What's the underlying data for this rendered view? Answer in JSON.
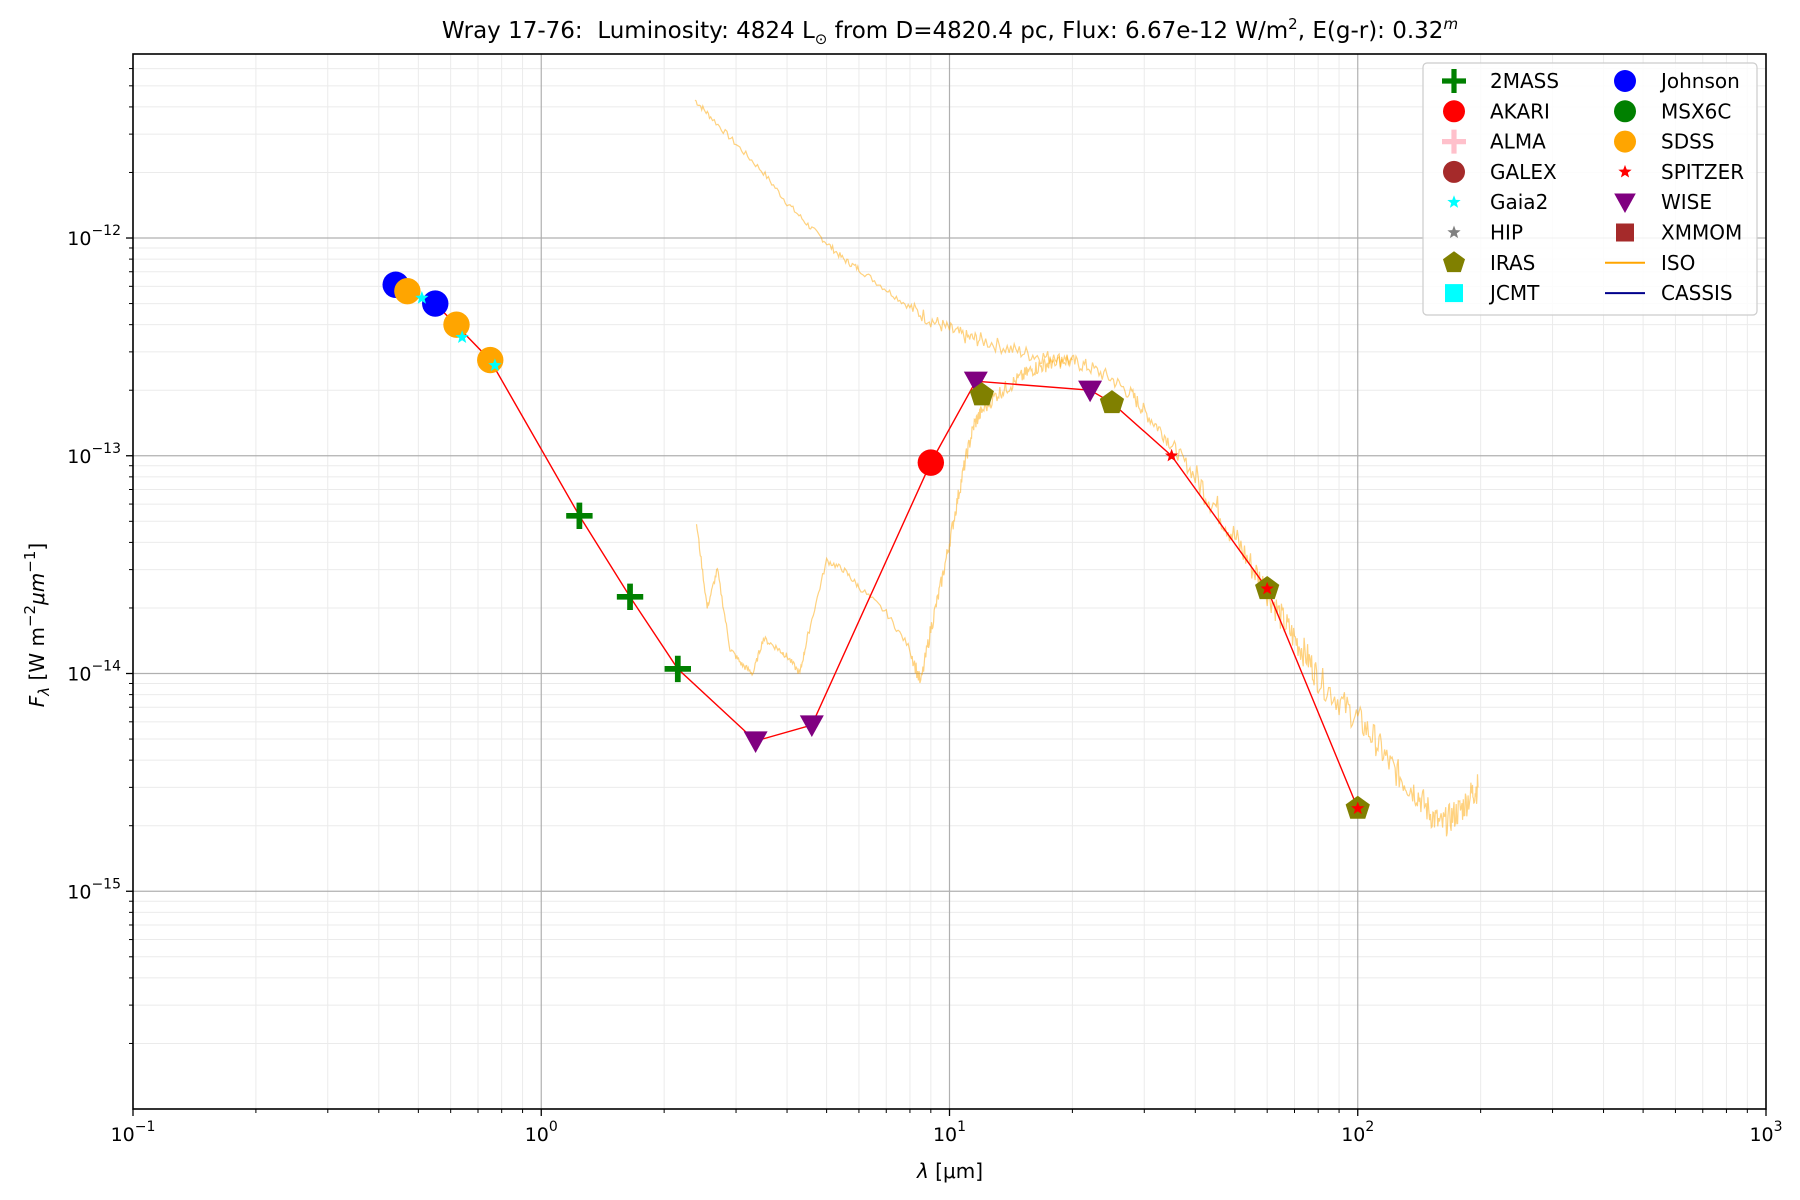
{
  "chart_data": {
    "type": "scatter",
    "title": {
      "object": "Wray 17-76:",
      "lum_prefix": "Luminosity: 4824 L",
      "sun_symbol": "⊙",
      "from_text": " from D=4820.4 pc, Flux: 6.67e-12 W/m",
      "flux_sup": "2",
      "ext_text": ", E(g-r): 0.32",
      "ext_sup": "m"
    },
    "xlabel": "λ [μm]",
    "ylabel": "F_λ [W m^-2 μm^-1]",
    "xlabel_parts": {
      "lambda": "λ",
      "unit": " [μm]"
    },
    "ylabel_parts": {
      "f": "F",
      "sub": "λ",
      "unit_a": " [W m",
      "sup_a": "−2",
      "unit_b": "μm",
      "sup_b": "−1",
      "unit_c": "]"
    },
    "xscale": "log",
    "yscale": "log",
    "xlim": [
      0.1,
      1000
    ],
    "ylim": [
      1e-16,
      7e-12
    ],
    "grid": true,
    "legend_position": "top-right",
    "x_ticks": [
      {
        "value": 0.1,
        "base": "10",
        "exp": "−1"
      },
      {
        "value": 1,
        "base": "10",
        "exp": "0"
      },
      {
        "value": 10,
        "base": "10",
        "exp": "1"
      },
      {
        "value": 100,
        "base": "10",
        "exp": "2"
      },
      {
        "value": 1000,
        "base": "10",
        "exp": "3"
      }
    ],
    "y_ticks": [
      {
        "value": 1e-12,
        "base": "10",
        "exp": "−12"
      },
      {
        "value": 1e-13,
        "base": "10",
        "exp": "−13"
      },
      {
        "value": 1e-14,
        "base": "10",
        "exp": "−14"
      },
      {
        "value": 1e-15,
        "base": "10",
        "exp": "−15"
      }
    ],
    "legend": [
      {
        "label": "2MASS",
        "marker": "plus",
        "color": "#008000",
        "col": 0
      },
      {
        "label": "AKARI",
        "marker": "circle",
        "color": "#ff0000",
        "col": 0
      },
      {
        "label": "ALMA",
        "marker": "plus",
        "color": "#ffc0cb",
        "col": 0
      },
      {
        "label": "GALEX",
        "marker": "circle",
        "color": "#a52a2a",
        "col": 0
      },
      {
        "label": "Gaia2",
        "marker": "star",
        "color": "#00ffff",
        "col": 0
      },
      {
        "label": "HIP",
        "marker": "star",
        "color": "#808080",
        "col": 0
      },
      {
        "label": "IRAS",
        "marker": "pentagon",
        "color": "#808000",
        "col": 0
      },
      {
        "label": "JCMT",
        "marker": "square",
        "color": "#00ffff",
        "col": 0
      },
      {
        "label": "Johnson",
        "marker": "circle",
        "color": "#0000ff",
        "col": 1
      },
      {
        "label": "MSX6C",
        "marker": "circle",
        "color": "#008000",
        "col": 1
      },
      {
        "label": "SDSS",
        "marker": "circle",
        "color": "#ffa500",
        "col": 1
      },
      {
        "label": "SPITZER",
        "marker": "star",
        "color": "#ff0000",
        "col": 1
      },
      {
        "label": "WISE",
        "marker": "triangle-down",
        "color": "#800080",
        "col": 1
      },
      {
        "label": "XMMOM",
        "marker": "square",
        "color": "#a52a2a",
        "col": 1
      },
      {
        "label": "ISO",
        "marker": "line",
        "color": "#ffa500",
        "col": 1
      },
      {
        "label": "CASSIS",
        "marker": "line",
        "color": "#00008b",
        "col": 1
      }
    ],
    "series": [
      {
        "name": "Johnson",
        "marker": "circle",
        "color": "#0000ff",
        "points": [
          [
            0.44,
            6.1e-13
          ],
          [
            0.55,
            5e-13
          ]
        ]
      },
      {
        "name": "SDSS",
        "marker": "circle",
        "color": "#ffa500",
        "points": [
          [
            0.47,
            5.7e-13
          ],
          [
            0.62,
            4e-13
          ],
          [
            0.75,
            2.75e-13
          ]
        ]
      },
      {
        "name": "Gaia2",
        "marker": "star",
        "color": "#00ffff",
        "points": [
          [
            0.51,
            5.3e-13
          ],
          [
            0.64,
            3.5e-13
          ],
          [
            0.77,
            2.6e-13
          ]
        ]
      },
      {
        "name": "2MASS",
        "marker": "plus",
        "color": "#008000",
        "points": [
          [
            1.24,
            5.3e-14
          ],
          [
            1.65,
            2.25e-14
          ],
          [
            2.16,
            1.05e-14
          ]
        ]
      },
      {
        "name": "WISE",
        "marker": "triangle-down",
        "color": "#800080",
        "points": [
          [
            3.35,
            4.9e-15
          ],
          [
            4.6,
            5.8e-15
          ],
          [
            11.6,
            2.2e-13
          ],
          [
            22.1,
            2e-13
          ]
        ]
      },
      {
        "name": "AKARI",
        "marker": "circle",
        "color": "#ff0000",
        "points": [
          [
            9.0,
            9.3e-14
          ]
        ]
      },
      {
        "name": "IRAS",
        "marker": "pentagon",
        "color": "#808000",
        "points": [
          [
            12.0,
            1.9e-13
          ],
          [
            25.0,
            1.75e-13
          ],
          [
            60.0,
            2.45e-14
          ],
          [
            100.0,
            2.4e-15
          ]
        ]
      },
      {
        "name": "SPITZER",
        "marker": "star",
        "color": "#ff0000",
        "points": [
          [
            35.0,
            1e-13
          ],
          [
            60.0,
            2.45e-14
          ],
          [
            100.0,
            2.4e-15
          ]
        ]
      }
    ],
    "sed_line": {
      "color": "#ff0000",
      "points": [
        [
          0.44,
          6.1e-13
        ],
        [
          0.47,
          5.7e-13
        ],
        [
          0.51,
          5.3e-13
        ],
        [
          0.55,
          5e-13
        ],
        [
          0.75,
          2.75e-13
        ],
        [
          1.24,
          5.3e-14
        ],
        [
          1.65,
          2.25e-14
        ],
        [
          2.16,
          1.05e-14
        ],
        [
          3.35,
          4.9e-15
        ],
        [
          4.6,
          5.8e-15
        ],
        [
          9.0,
          9.3e-14
        ],
        [
          11.6,
          2.2e-13
        ],
        [
          22.1,
          2e-13
        ],
        [
          25.0,
          1.75e-13
        ],
        [
          35.0,
          1e-13
        ],
        [
          60.0,
          2.45e-14
        ],
        [
          100.0,
          2.4e-15
        ]
      ]
    },
    "iso_spectrum": {
      "color": "#ffa500",
      "segments": [
        [
          [
            2.38,
            4.3e-12
          ],
          [
            2.6,
            3.6e-12
          ],
          [
            3.0,
            2.7e-12
          ],
          [
            3.5,
            2e-12
          ],
          [
            4.0,
            1.45e-12
          ],
          [
            4.5,
            1.15e-12
          ],
          [
            5.0,
            9.5e-13
          ],
          [
            5.5,
            8e-13
          ],
          [
            6.0,
            7.2e-13
          ],
          [
            7.0,
            5.8e-13
          ],
          [
            8.0,
            4.8e-13
          ],
          [
            9.0,
            4.2e-13
          ],
          [
            10.0,
            3.8e-13
          ],
          [
            11.0,
            3.5e-13
          ],
          [
            12.0,
            3.4e-13
          ],
          [
            14.0,
            3.1e-13
          ],
          [
            16.0,
            2.9e-13
          ],
          [
            18.0,
            2.8e-13
          ],
          [
            20.0,
            2.7e-13
          ],
          [
            22.0,
            2.55e-13
          ],
          [
            25.0,
            2.25e-13
          ],
          [
            28.0,
            1.9e-13
          ],
          [
            30.0,
            1.6e-13
          ],
          [
            33.0,
            1.3e-13
          ],
          [
            36.0,
            1.05e-13
          ],
          [
            40.0,
            8e-14
          ],
          [
            45.0,
            5.8e-14
          ],
          [
            50.0,
            4.2e-14
          ],
          [
            55.0,
            3.1e-14
          ],
          [
            60.0,
            2.4e-14
          ],
          [
            65.0,
            1.8e-14
          ],
          [
            70.0,
            1.45e-14
          ],
          [
            75.0,
            1.2e-14
          ],
          [
            80.0,
            9.5e-15
          ],
          [
            90.0,
            7.5e-15
          ],
          [
            100.0,
            6.2e-15
          ],
          [
            110.0,
            5e-15
          ],
          [
            120.0,
            3.8e-15
          ],
          [
            130.0,
            3.2e-15
          ],
          [
            140.0,
            2.8e-15
          ],
          [
            150.0,
            2.3e-15
          ],
          [
            160.0,
            2e-15
          ],
          [
            170.0,
            2.2e-15
          ],
          [
            180.0,
            2.4e-15
          ],
          [
            190.0,
            2.8e-15
          ],
          [
            197.0,
            3e-15
          ]
        ],
        [
          [
            2.4,
            4.9e-14
          ],
          [
            2.55,
            2e-14
          ],
          [
            2.7,
            3e-14
          ],
          [
            2.9,
            1.3e-14
          ],
          [
            3.1,
            1.1e-14
          ],
          [
            3.3,
            1e-14
          ],
          [
            3.5,
            1.45e-14
          ],
          [
            3.8,
            1.3e-14
          ],
          [
            4.0,
            1.2e-14
          ],
          [
            4.3,
            1e-14
          ],
          [
            4.5,
            1.5e-14
          ],
          [
            5.0,
            3.3e-14
          ],
          [
            5.5,
            3e-14
          ],
          [
            6.0,
            2.5e-14
          ],
          [
            7.0,
            1.9e-14
          ],
          [
            8.0,
            1.3e-14
          ],
          [
            8.5,
            9e-15
          ],
          [
            9.0,
            1.6e-14
          ],
          [
            9.5,
            2.5e-14
          ],
          [
            10.0,
            4e-14
          ],
          [
            10.5,
            6.5e-14
          ],
          [
            11.0,
            1e-13
          ],
          [
            11.5,
            1.4e-13
          ],
          [
            12.0,
            1.6e-13
          ],
          [
            13.0,
            1.9e-13
          ],
          [
            14.0,
            2.1e-13
          ],
          [
            15.0,
            2.3e-13
          ],
          [
            16.0,
            2.5e-13
          ],
          [
            17.0,
            2.6e-13
          ],
          [
            18.0,
            2.7e-13
          ],
          [
            20.0,
            2.75e-13
          ]
        ]
      ]
    }
  }
}
